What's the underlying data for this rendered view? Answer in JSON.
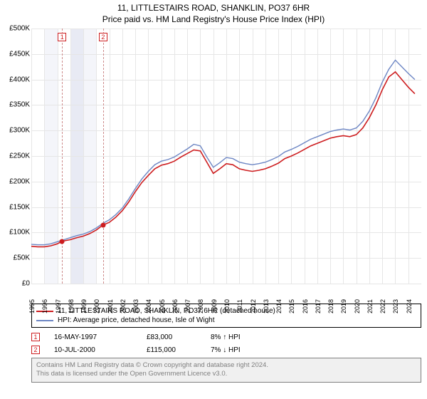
{
  "title": "11, LITTLESTAIRS ROAD, SHANKLIN, PO37 6HR",
  "subtitle": "Price paid vs. HM Land Registry's House Price Index (HPI)",
  "chart": {
    "type": "line",
    "background_color": "#ffffff",
    "grid_color": "#e6e6e6",
    "xlim": [
      1995,
      2025
    ],
    "ylim": [
      0,
      500000
    ],
    "y_ticks": [
      0,
      50000,
      100000,
      150000,
      200000,
      250000,
      300000,
      350000,
      400000,
      450000,
      500000
    ],
    "y_tick_labels": [
      "£0",
      "£50K",
      "£100K",
      "£150K",
      "£200K",
      "£250K",
      "£300K",
      "£350K",
      "£400K",
      "£450K",
      "£500K"
    ],
    "x_ticks": [
      1995,
      1996,
      1997,
      1998,
      1999,
      2000,
      2001,
      2002,
      2003,
      2004,
      2005,
      2006,
      2007,
      2008,
      2009,
      2010,
      2011,
      2012,
      2013,
      2014,
      2015,
      2016,
      2017,
      2018,
      2019,
      2020,
      2021,
      2022,
      2023,
      2024
    ],
    "grid_dash_color": "#cd8a8a",
    "shade_bands": [
      {
        "from": 1996,
        "to": 1997,
        "color": "#f4f5fa"
      },
      {
        "from": 1998,
        "to": 1999,
        "color": "#e8eaf4"
      },
      {
        "from": 1999,
        "to": 2000,
        "color": "#f4f5fa"
      }
    ],
    "series": [
      {
        "name": "price_paid",
        "label": "11, LITTLESTAIRS ROAD, SHANKLIN, PO37 6HR (detached house)",
        "color": "#cd1d1f",
        "line_width": 1.6,
        "points": [
          [
            1995,
            73000
          ],
          [
            1995.5,
            72000
          ],
          [
            1996,
            72000
          ],
          [
            1996.5,
            74000
          ],
          [
            1997,
            78000
          ],
          [
            1997.37,
            83000
          ],
          [
            1998,
            86000
          ],
          [
            1998.5,
            90000
          ],
          [
            1999,
            93000
          ],
          [
            1999.5,
            98000
          ],
          [
            2000,
            105000
          ],
          [
            2000.52,
            115000
          ],
          [
            2001,
            120000
          ],
          [
            2001.5,
            130000
          ],
          [
            2002,
            143000
          ],
          [
            2002.5,
            160000
          ],
          [
            2003,
            180000
          ],
          [
            2003.5,
            198000
          ],
          [
            2004,
            212000
          ],
          [
            2004.5,
            225000
          ],
          [
            2005,
            232000
          ],
          [
            2005.5,
            235000
          ],
          [
            2006,
            240000
          ],
          [
            2006.5,
            248000
          ],
          [
            2007,
            255000
          ],
          [
            2007.5,
            262000
          ],
          [
            2008,
            260000
          ],
          [
            2008.5,
            238000
          ],
          [
            2009,
            216000
          ],
          [
            2009.5,
            225000
          ],
          [
            2010,
            235000
          ],
          [
            2010.5,
            233000
          ],
          [
            2011,
            225000
          ],
          [
            2011.5,
            222000
          ],
          [
            2012,
            220000
          ],
          [
            2012.5,
            222000
          ],
          [
            2013,
            225000
          ],
          [
            2013.5,
            230000
          ],
          [
            2014,
            236000
          ],
          [
            2014.5,
            245000
          ],
          [
            2015,
            250000
          ],
          [
            2015.5,
            256000
          ],
          [
            2016,
            263000
          ],
          [
            2016.5,
            270000
          ],
          [
            2017,
            275000
          ],
          [
            2017.5,
            280000
          ],
          [
            2018,
            285000
          ],
          [
            2018.5,
            288000
          ],
          [
            2019,
            290000
          ],
          [
            2019.5,
            288000
          ],
          [
            2020,
            292000
          ],
          [
            2020.5,
            305000
          ],
          [
            2021,
            325000
          ],
          [
            2021.5,
            350000
          ],
          [
            2022,
            380000
          ],
          [
            2022.5,
            405000
          ],
          [
            2023,
            415000
          ],
          [
            2023.5,
            400000
          ],
          [
            2024,
            385000
          ],
          [
            2024.5,
            372000
          ]
        ]
      },
      {
        "name": "hpi",
        "label": "HPI: Average price, detached house, Isle of Wight",
        "color": "#6d86c4",
        "line_width": 1.4,
        "points": [
          [
            1995,
            77000
          ],
          [
            1995.5,
            76000
          ],
          [
            1996,
            76000
          ],
          [
            1996.5,
            78000
          ],
          [
            1997,
            82000
          ],
          [
            1997.5,
            86000
          ],
          [
            1998,
            90000
          ],
          [
            1998.5,
            94000
          ],
          [
            1999,
            97000
          ],
          [
            1999.5,
            102000
          ],
          [
            2000,
            109000
          ],
          [
            2000.5,
            118000
          ],
          [
            2001,
            125000
          ],
          [
            2001.5,
            135000
          ],
          [
            2002,
            148000
          ],
          [
            2002.5,
            166000
          ],
          [
            2003,
            186000
          ],
          [
            2003.5,
            205000
          ],
          [
            2004,
            220000
          ],
          [
            2004.5,
            233000
          ],
          [
            2005,
            240000
          ],
          [
            2005.5,
            243000
          ],
          [
            2006,
            248000
          ],
          [
            2006.5,
            256000
          ],
          [
            2007,
            264000
          ],
          [
            2007.5,
            273000
          ],
          [
            2008,
            270000
          ],
          [
            2008.5,
            248000
          ],
          [
            2009,
            228000
          ],
          [
            2009.5,
            237000
          ],
          [
            2010,
            247000
          ],
          [
            2010.5,
            245000
          ],
          [
            2011,
            238000
          ],
          [
            2011.5,
            235000
          ],
          [
            2012,
            233000
          ],
          [
            2012.5,
            235000
          ],
          [
            2013,
            238000
          ],
          [
            2013.5,
            243000
          ],
          [
            2014,
            249000
          ],
          [
            2014.5,
            258000
          ],
          [
            2015,
            263000
          ],
          [
            2015.5,
            269000
          ],
          [
            2016,
            276000
          ],
          [
            2016.5,
            283000
          ],
          [
            2017,
            288000
          ],
          [
            2017.5,
            293000
          ],
          [
            2018,
            298000
          ],
          [
            2018.5,
            301000
          ],
          [
            2019,
            303000
          ],
          [
            2019.5,
            301000
          ],
          [
            2020,
            305000
          ],
          [
            2020.5,
            318000
          ],
          [
            2021,
            338000
          ],
          [
            2021.5,
            364000
          ],
          [
            2022,
            395000
          ],
          [
            2022.5,
            420000
          ],
          [
            2023,
            438000
          ],
          [
            2023.5,
            425000
          ],
          [
            2024,
            412000
          ],
          [
            2024.5,
            400000
          ]
        ]
      }
    ],
    "event_markers": [
      {
        "n": "1",
        "x": 1997.37,
        "y": 83000,
        "box_y_top": true
      },
      {
        "n": "2",
        "x": 2000.52,
        "y": 115000,
        "box_y_top": true
      }
    ]
  },
  "legend": {
    "series1": "11, LITTLESTAIRS ROAD, SHANKLIN, PO37 6HR (detached house)",
    "series2": "HPI: Average price, detached house, Isle of Wight"
  },
  "events": [
    {
      "n": "1",
      "date": "16-MAY-1997",
      "price": "£83,000",
      "delta": "8% ↑ HPI"
    },
    {
      "n": "2",
      "date": "10-JUL-2000",
      "price": "£115,000",
      "delta": "7% ↓ HPI"
    }
  ],
  "attribution": {
    "line1": "Contains HM Land Registry data © Crown copyright and database right 2024.",
    "line2": "This data is licensed under the Open Government Licence v3.0."
  },
  "colors": {
    "red": "#cd1d1f",
    "blue": "#6d86c4",
    "grey": "#7f7f7f",
    "grey_bg": "#f0f0f0"
  }
}
